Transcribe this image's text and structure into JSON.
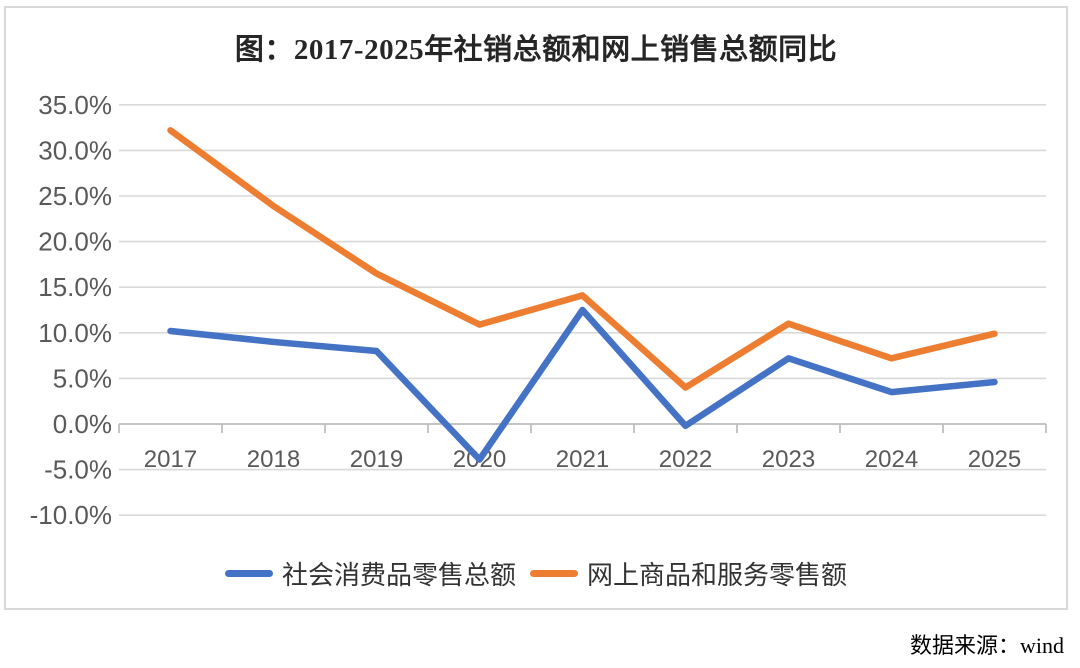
{
  "title": "图：2017-2025年社销总额和网上销售总额同比",
  "source_note": "数据来源：wind",
  "chart_data": {
    "type": "line",
    "title": "图：2017-2025年社销总额和网上销售总额同比",
    "categories": [
      "2017",
      "2018",
      "2019",
      "2020",
      "2021",
      "2022",
      "2023",
      "2024",
      "2025"
    ],
    "series": [
      {
        "name": "社会消费品零售总额",
        "color": "#4472C4",
        "values": [
          10.2,
          9.0,
          8.0,
          -3.9,
          12.5,
          -0.2,
          7.2,
          3.5,
          4.6
        ]
      },
      {
        "name": "网上商品和服务零售额",
        "color": "#ED7D31",
        "values": [
          32.2,
          23.9,
          16.5,
          10.9,
          14.1,
          4.0,
          11.0,
          7.2,
          9.9
        ]
      }
    ],
    "xlabel": "",
    "ylabel": "",
    "ylim": [
      -10,
      35
    ],
    "ytick_step": 5,
    "ytick_labels": [
      "35.0%",
      "30.0%",
      "25.0%",
      "20.0%",
      "15.0%",
      "10.0%",
      "5.0%",
      "0.0%",
      "-5.0%",
      "-10.0%"
    ],
    "grid": true,
    "legend_position": "bottom",
    "colors": {
      "gridline": "#D9D9D9",
      "axis": "#BFBFBF",
      "tick_label": "#595959",
      "frame_border": "#D9D9D9"
    }
  }
}
